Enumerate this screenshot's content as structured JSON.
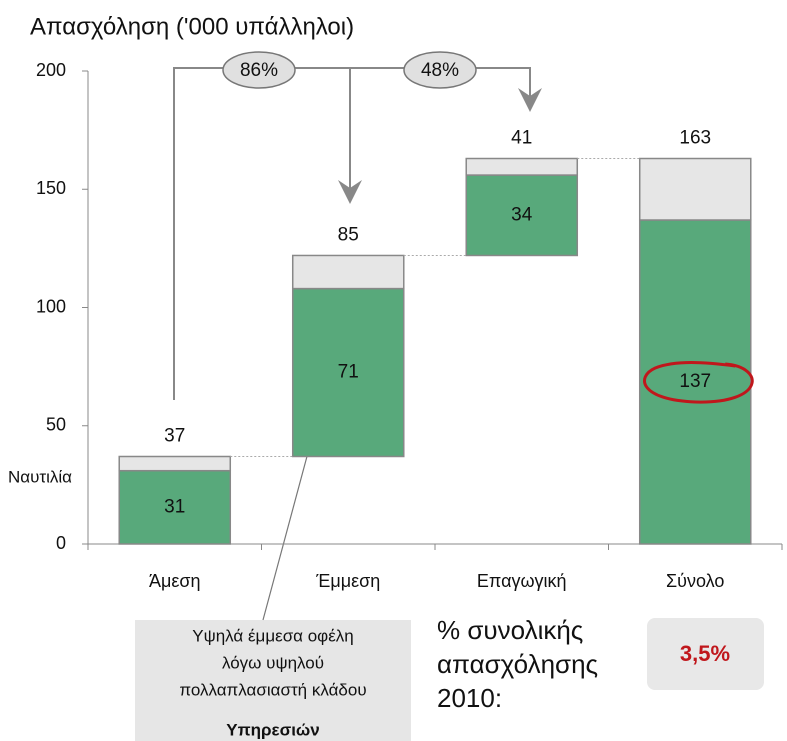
{
  "chart_data": {
    "type": "waterfall",
    "title": "Απασχόληση ('000 υπάλληλοι)",
    "categories": [
      "Άμεση",
      "Έμμεση",
      "Επαγωγική",
      "Σύνολο"
    ],
    "series": [
      {
        "color": "#58a97b",
        "values": [
          31,
          71,
          34,
          137
        ]
      },
      {
        "color": "#e6e6e6",
        "values": [
          6,
          14,
          7,
          26
        ]
      }
    ],
    "totals": [
      37,
      85,
      41,
      163
    ],
    "is_total": [
      false,
      false,
      false,
      true
    ],
    "ylim": [
      0,
      200
    ],
    "yticks": [
      0,
      50,
      100,
      150,
      200
    ],
    "growth_labels": [
      "86%",
      "48%"
    ],
    "side_label": "Ναυτιλία",
    "callout": [
      "Υψηλά έμμεσα οφέλη",
      "λόγω υψηλού",
      "πολλαπλασιαστή  κλάδου",
      "Υπηρεσιών"
    ],
    "share_label": [
      "% συνολικής",
      "απασχόλησης",
      "2010:"
    ],
    "share_value": "3,5%"
  }
}
